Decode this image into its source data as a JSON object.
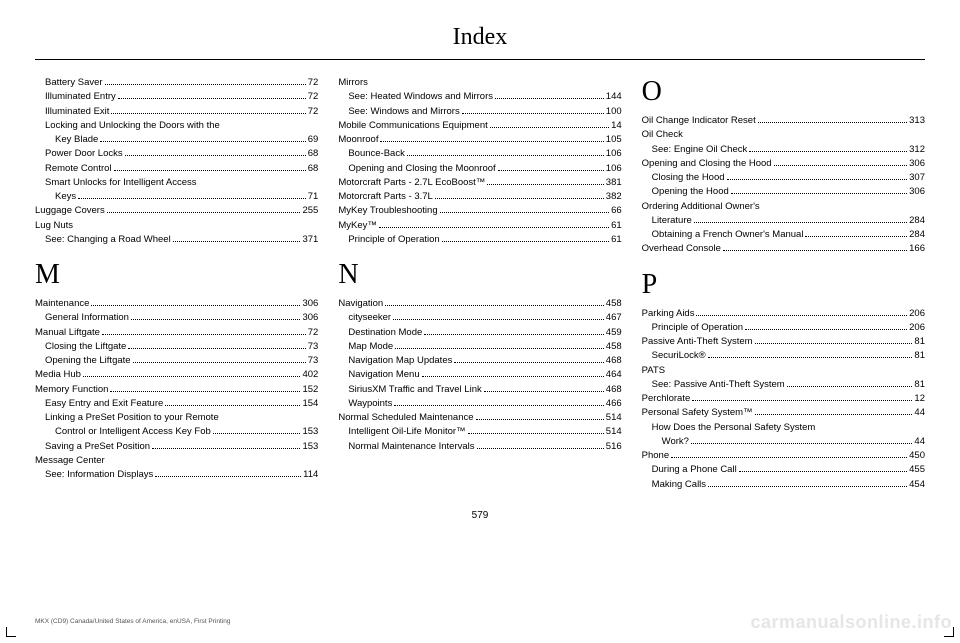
{
  "title": "Index",
  "page_number": "579",
  "footer_text": "MKX (CD9) Canada/United States of America, enUSA, First Printing",
  "watermark": "carmanualsonline.info",
  "columns": [
    {
      "items": [
        {
          "type": "entry",
          "indent": 1,
          "label": "Battery Saver",
          "page": "72"
        },
        {
          "type": "entry",
          "indent": 1,
          "label": "Illuminated Entry",
          "page": "72"
        },
        {
          "type": "entry",
          "indent": 1,
          "label": "Illuminated Exit",
          "page": "72"
        },
        {
          "type": "entry",
          "indent": 1,
          "label": "Locking and Unlocking the Doors with the",
          "nopage": true
        },
        {
          "type": "entry",
          "indent": 2,
          "label": "Key Blade",
          "page": "69"
        },
        {
          "type": "entry",
          "indent": 1,
          "label": "Power Door Locks",
          "page": "68"
        },
        {
          "type": "entry",
          "indent": 1,
          "label": "Remote Control",
          "page": "68"
        },
        {
          "type": "entry",
          "indent": 1,
          "label": "Smart Unlocks for Intelligent Access",
          "nopage": true
        },
        {
          "type": "entry",
          "indent": 2,
          "label": "Keys",
          "page": "71"
        },
        {
          "type": "entry",
          "indent": 0,
          "label": "Luggage Covers",
          "page": "255"
        },
        {
          "type": "entry",
          "indent": 0,
          "label": "Lug Nuts",
          "nopage": true
        },
        {
          "type": "entry",
          "indent": 1,
          "label": "See: Changing a Road Wheel",
          "page": "371"
        },
        {
          "type": "letter",
          "text": "M"
        },
        {
          "type": "entry",
          "indent": 0,
          "label": "Maintenance",
          "page": "306"
        },
        {
          "type": "entry",
          "indent": 1,
          "label": "General Information",
          "page": "306"
        },
        {
          "type": "entry",
          "indent": 0,
          "label": "Manual Liftgate",
          "page": "72"
        },
        {
          "type": "entry",
          "indent": 1,
          "label": "Closing the Liftgate",
          "page": "73"
        },
        {
          "type": "entry",
          "indent": 1,
          "label": "Opening the Liftgate",
          "page": "73"
        },
        {
          "type": "entry",
          "indent": 0,
          "label": "Media Hub",
          "page": "402"
        },
        {
          "type": "entry",
          "indent": 0,
          "label": "Memory Function",
          "page": "152"
        },
        {
          "type": "entry",
          "indent": 1,
          "label": "Easy Entry and Exit Feature",
          "page": "154"
        },
        {
          "type": "entry",
          "indent": 1,
          "label": "Linking a PreSet Position to your Remote",
          "nopage": true
        },
        {
          "type": "entry",
          "indent": 2,
          "label": "Control or Intelligent Access Key Fob",
          "page": "153"
        },
        {
          "type": "entry",
          "indent": 1,
          "label": "Saving a PreSet Position",
          "page": "153"
        },
        {
          "type": "entry",
          "indent": 0,
          "label": "Message Center",
          "nopage": true
        },
        {
          "type": "entry",
          "indent": 1,
          "label": "See: Information Displays",
          "page": "114"
        }
      ]
    },
    {
      "items": [
        {
          "type": "entry",
          "indent": 0,
          "label": "Mirrors",
          "nopage": true
        },
        {
          "type": "entry",
          "indent": 1,
          "label": "See: Heated Windows and Mirrors",
          "page": "144"
        },
        {
          "type": "entry",
          "indent": 1,
          "label": "See: Windows and Mirrors",
          "page": "100"
        },
        {
          "type": "entry",
          "indent": 0,
          "label": "Mobile Communications Equipment",
          "page": "14"
        },
        {
          "type": "entry",
          "indent": 0,
          "label": "Moonroof",
          "page": "105"
        },
        {
          "type": "entry",
          "indent": 1,
          "label": "Bounce-Back",
          "page": "106"
        },
        {
          "type": "entry",
          "indent": 1,
          "label": "Opening and Closing the Moonroof",
          "page": "106"
        },
        {
          "type": "entry",
          "indent": 0,
          "label": "Motorcraft Parts - 2.7L EcoBoost™",
          "page": "381"
        },
        {
          "type": "entry",
          "indent": 0,
          "label": "Motorcraft Parts - 3.7L",
          "page": "382"
        },
        {
          "type": "entry",
          "indent": 0,
          "label": "MyKey Troubleshooting",
          "page": "66"
        },
        {
          "type": "entry",
          "indent": 0,
          "label": "MyKey™",
          "page": "61"
        },
        {
          "type": "entry",
          "indent": 1,
          "label": "Principle of Operation",
          "page": "61"
        },
        {
          "type": "letter",
          "text": "N"
        },
        {
          "type": "entry",
          "indent": 0,
          "label": "Navigation",
          "page": "458"
        },
        {
          "type": "entry",
          "indent": 1,
          "label": "cityseeker",
          "page": "467"
        },
        {
          "type": "entry",
          "indent": 1,
          "label": "Destination Mode",
          "page": "459"
        },
        {
          "type": "entry",
          "indent": 1,
          "label": "Map Mode",
          "page": "458"
        },
        {
          "type": "entry",
          "indent": 1,
          "label": "Navigation Map Updates",
          "page": "468"
        },
        {
          "type": "entry",
          "indent": 1,
          "label": "Navigation Menu",
          "page": "464"
        },
        {
          "type": "entry",
          "indent": 1,
          "label": "SiriusXM Traffic and Travel Link",
          "page": "468"
        },
        {
          "type": "entry",
          "indent": 1,
          "label": "Waypoints",
          "page": "466"
        },
        {
          "type": "entry",
          "indent": 0,
          "label": "Normal Scheduled Maintenance",
          "page": "514"
        },
        {
          "type": "entry",
          "indent": 1,
          "label": "Intelligent Oil-Life Monitor™",
          "page": "514"
        },
        {
          "type": "entry",
          "indent": 1,
          "label": "Normal Maintenance Intervals",
          "page": "516"
        }
      ]
    },
    {
      "items": [
        {
          "type": "letter",
          "text": "O",
          "tight": true
        },
        {
          "type": "entry",
          "indent": 0,
          "label": "Oil Change Indicator Reset",
          "page": "313"
        },
        {
          "type": "entry",
          "indent": 0,
          "label": "Oil Check",
          "nopage": true
        },
        {
          "type": "entry",
          "indent": 1,
          "label": "See: Engine Oil Check",
          "page": "312"
        },
        {
          "type": "entry",
          "indent": 0,
          "label": "Opening and Closing the Hood",
          "page": "306"
        },
        {
          "type": "entry",
          "indent": 1,
          "label": "Closing the Hood",
          "page": "307"
        },
        {
          "type": "entry",
          "indent": 1,
          "label": "Opening the Hood",
          "page": "306"
        },
        {
          "type": "entry",
          "indent": 0,
          "label": "Ordering Additional Owner's",
          "nopage": true
        },
        {
          "type": "entry",
          "indent": 1,
          "label": "Literature",
          "page": "284"
        },
        {
          "type": "entry",
          "indent": 1,
          "label": "Obtaining a French Owner's Manual",
          "page": "284"
        },
        {
          "type": "entry",
          "indent": 0,
          "label": "Overhead Console",
          "page": "166"
        },
        {
          "type": "letter",
          "text": "P"
        },
        {
          "type": "entry",
          "indent": 0,
          "label": "Parking Aids",
          "page": "206"
        },
        {
          "type": "entry",
          "indent": 1,
          "label": "Principle of Operation",
          "page": "206"
        },
        {
          "type": "entry",
          "indent": 0,
          "label": "Passive Anti-Theft System",
          "page": "81"
        },
        {
          "type": "entry",
          "indent": 1,
          "label": "SecuriLock®",
          "page": "81"
        },
        {
          "type": "entry",
          "indent": 0,
          "label": "PATS",
          "nopage": true
        },
        {
          "type": "entry",
          "indent": 1,
          "label": "See: Passive Anti-Theft System",
          "page": "81"
        },
        {
          "type": "entry",
          "indent": 0,
          "label": "Perchlorate",
          "page": "12"
        },
        {
          "type": "entry",
          "indent": 0,
          "label": "Personal Safety System™",
          "page": "44"
        },
        {
          "type": "entry",
          "indent": 1,
          "label": "How Does the Personal Safety System",
          "nopage": true
        },
        {
          "type": "entry",
          "indent": 2,
          "label": "Work?",
          "page": "44"
        },
        {
          "type": "entry",
          "indent": 0,
          "label": "Phone",
          "page": "450"
        },
        {
          "type": "entry",
          "indent": 1,
          "label": "During a Phone Call",
          "page": "455"
        },
        {
          "type": "entry",
          "indent": 1,
          "label": "Making Calls",
          "page": "454"
        }
      ]
    }
  ]
}
